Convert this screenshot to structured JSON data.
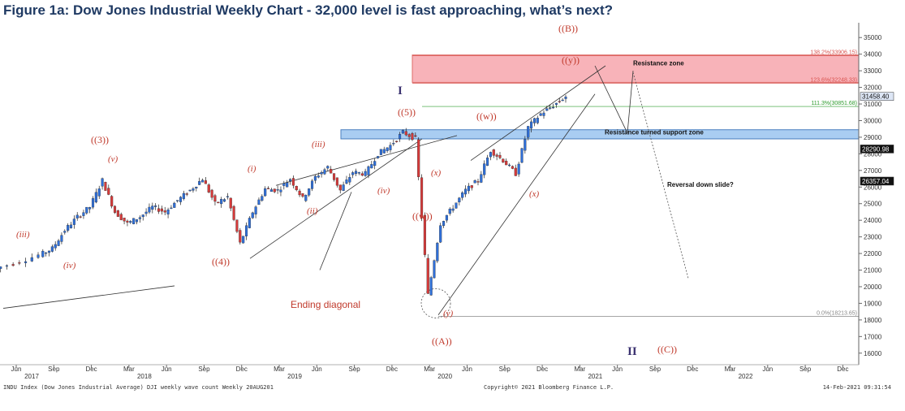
{
  "title": "Figure 1a: Dow Jones Industrial Weekly Chart - 32,000 level is fast approaching, what’s next?",
  "footer": {
    "left": "INDU Index (Dow Jones Industrial Average) DJI weekly wave count  Weekly 20AUG201",
    "center": "Copyright© 2021 Bloomberg Finance L.P.",
    "right": "14-Feb-2021 09:31:54"
  },
  "chart_data": {
    "type": "line",
    "title": "Figure 1a: Dow Jones Industrial Weekly Chart - 32,000 level is fast approaching, what’s next?",
    "xlabel": "",
    "ylabel": "",
    "ylim": [
      15500,
      35500
    ],
    "x_tick_labels": [
      {
        "month": "Jun",
        "year": "2017"
      },
      {
        "month": "Sep",
        "year": ""
      },
      {
        "month": "Dec",
        "year": ""
      },
      {
        "month": "Mar",
        "year": "2018"
      },
      {
        "month": "Jun",
        "year": ""
      },
      {
        "month": "Sep",
        "year": ""
      },
      {
        "month": "Dec",
        "year": ""
      },
      {
        "month": "Mar",
        "year": "2019"
      },
      {
        "month": "Jun",
        "year": ""
      },
      {
        "month": "Sep",
        "year": ""
      },
      {
        "month": "Dec",
        "year": ""
      },
      {
        "month": "Mar",
        "year": "2020"
      },
      {
        "month": "Jun",
        "year": ""
      },
      {
        "month": "Sep",
        "year": ""
      },
      {
        "month": "Dec",
        "year": ""
      },
      {
        "month": "Mar",
        "year": "2021"
      },
      {
        "month": "Jun",
        "year": ""
      },
      {
        "month": "Sep",
        "year": ""
      },
      {
        "month": "Dec",
        "year": ""
      },
      {
        "month": "Mar",
        "year": "2022"
      },
      {
        "month": "Jun",
        "year": ""
      },
      {
        "month": "Sep",
        "year": ""
      },
      {
        "month": "Dec",
        "year": ""
      }
    ],
    "y_ticks": [
      16000,
      17000,
      18000,
      19000,
      20000,
      21000,
      22000,
      23000,
      24000,
      25000,
      26000,
      27000,
      28000,
      29000,
      30000,
      31000,
      32000,
      33000,
      34000,
      35000
    ],
    "series": [
      {
        "values": [
          {
            "x": "2017-04",
            "y": 21000
          },
          {
            "x": "2017-06",
            "y": 21400
          },
          {
            "x": "2017-08",
            "y": 21900
          },
          {
            "x": "2017-09",
            "y": 22300
          },
          {
            "x": "2017-10",
            "y": 23400
          },
          {
            "x": "2017-11",
            "y": 24200
          },
          {
            "x": "2017-12",
            "y": 24800
          },
          {
            "x": "2018-01",
            "y": 26400
          },
          {
            "x": "2018-02",
            "y": 24500
          },
          {
            "x": "2018-03",
            "y": 23800
          },
          {
            "x": "2018-04",
            "y": 24200
          },
          {
            "x": "2018-05",
            "y": 24800
          },
          {
            "x": "2018-06",
            "y": 24500
          },
          {
            "x": "2018-07",
            "y": 25200
          },
          {
            "x": "2018-08",
            "y": 25800
          },
          {
            "x": "2018-09",
            "y": 26500
          },
          {
            "x": "2018-10",
            "y": 25000
          },
          {
            "x": "2018-11",
            "y": 25400
          },
          {
            "x": "2018-12",
            "y": 22600
          },
          {
            "x": "2019-01",
            "y": 24500
          },
          {
            "x": "2019-02",
            "y": 25900
          },
          {
            "x": "2019-03",
            "y": 25800
          },
          {
            "x": "2019-04",
            "y": 26500
          },
          {
            "x": "2019-05",
            "y": 25300
          },
          {
            "x": "2019-06",
            "y": 26600
          },
          {
            "x": "2019-07",
            "y": 27200
          },
          {
            "x": "2019-08",
            "y": 25800
          },
          {
            "x": "2019-09",
            "y": 26900
          },
          {
            "x": "2019-10",
            "y": 26800
          },
          {
            "x": "2019-11",
            "y": 28000
          },
          {
            "x": "2019-12",
            "y": 28500
          },
          {
            "x": "2020-01",
            "y": 29300
          },
          {
            "x": "2020-02",
            "y": 28900
          },
          {
            "x": "2020-03",
            "y": 19500
          },
          {
            "x": "2020-04",
            "y": 23800
          },
          {
            "x": "2020-05",
            "y": 24800
          },
          {
            "x": "2020-06",
            "y": 25800
          },
          {
            "x": "2020-07",
            "y": 26400
          },
          {
            "x": "2020-08",
            "y": 28200
          },
          {
            "x": "2020-09",
            "y": 27600
          },
          {
            "x": "2020-10",
            "y": 26800
          },
          {
            "x": "2020-11",
            "y": 29600
          },
          {
            "x": "2020-12",
            "y": 30400
          },
          {
            "x": "2021-01",
            "y": 30900
          },
          {
            "x": "2021-02",
            "y": 31458
          }
        ]
      }
    ],
    "price_tags": [
      {
        "label": "31458.40",
        "value": 31458.4
      },
      {
        "label": "28290.98",
        "value": 28290.98
      },
      {
        "label": "26357.04",
        "value": 26357.04
      }
    ],
    "fib_levels": [
      {
        "label": "138.2%(33906.15)",
        "value": 33906.15,
        "color": "#d9534f"
      },
      {
        "label": "123.6%(32248.33)",
        "value": 32248.33,
        "color": "#d9534f"
      },
      {
        "label": "111.3%(30851.68)",
        "value": 30851.68,
        "color": "#2e9b2e"
      },
      {
        "label": "0.0%(18213.65)",
        "value": 18213.65,
        "color": "#888888"
      }
    ],
    "zones": [
      {
        "label": "Resistance zone",
        "color": "#f7a6ad"
      },
      {
        "label": "Resistance turned support zone",
        "color": "#a9cdf2"
      }
    ],
    "annotations": {
      "wave_labels": [
        "(iii)",
        "(iv)",
        "((3))",
        "(v)",
        "(i)",
        "(ii)",
        "(iii)",
        "((4))",
        "(iv)",
        "((5))",
        "(x)",
        "((w))",
        "((w))",
        "(y)",
        "((y))",
        "(x)",
        "((B))",
        "((A))",
        "((C))"
      ],
      "roman_labels": [
        "I",
        "II"
      ],
      "texts": [
        "Ending diagonal",
        "Reversal down slide?"
      ]
    }
  }
}
